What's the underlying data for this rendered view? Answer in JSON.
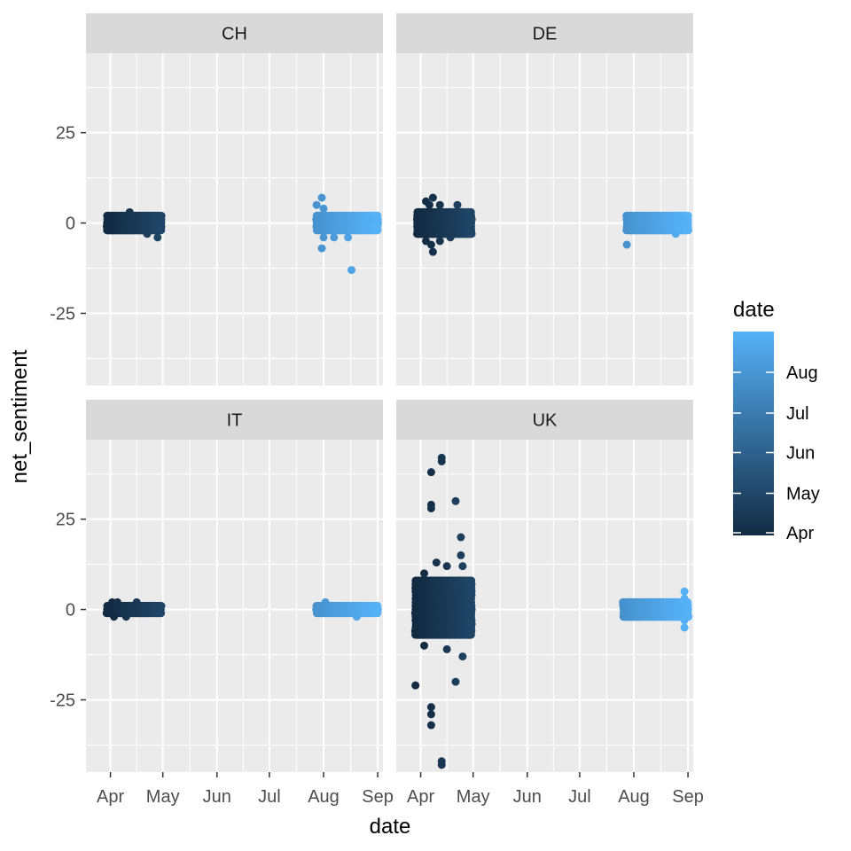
{
  "chart_data": {
    "type": "scatter",
    "xlabel": "date",
    "ylabel": "net_sentiment",
    "x_ticks": [
      "Apr",
      "May",
      "Jun",
      "Jul",
      "Aug",
      "Sep"
    ],
    "x_tick_dates": [
      "2020-04-01",
      "2020-05-01",
      "2020-06-01",
      "2020-07-01",
      "2020-08-01",
      "2020-09-01"
    ],
    "x_range": [
      "2020-03-18",
      "2020-09-04"
    ],
    "y_ticks": [
      -25,
      0,
      25
    ],
    "ylim": [
      -45,
      47
    ],
    "grid": true,
    "legend": {
      "title": "date",
      "placement": "right",
      "labels": [
        "Aug",
        "Jul",
        "Jun",
        "May",
        "Apr"
      ],
      "color_low": "#132B43",
      "color_high": "#56B1F7"
    },
    "panels": [
      {
        "name": "CH",
        "clusters": [
          {
            "x_start": "2020-03-30",
            "x_end": "2020-04-30",
            "y_min": -2,
            "y_max": 2
          },
          {
            "x_start": "2020-07-28",
            "x_end": "2020-09-01",
            "y_min": -2,
            "y_max": 2
          }
        ],
        "points": [
          {
            "x": "2020-04-12",
            "y": 3
          },
          {
            "x": "2020-04-28",
            "y": -4
          },
          {
            "x": "2020-04-22",
            "y": -3
          },
          {
            "x": "2020-07-28",
            "y": 5
          },
          {
            "x": "2020-07-31",
            "y": 7
          },
          {
            "x": "2020-08-01",
            "y": 4
          },
          {
            "x": "2020-08-01",
            "y": -4
          },
          {
            "x": "2020-07-31",
            "y": -7
          },
          {
            "x": "2020-08-07",
            "y": -4
          },
          {
            "x": "2020-08-15",
            "y": -4
          },
          {
            "x": "2020-08-17",
            "y": -13
          },
          {
            "x": "2020-08-29",
            "y": 1
          }
        ]
      },
      {
        "name": "DE",
        "clusters": [
          {
            "x_start": "2020-03-30",
            "x_end": "2020-04-30",
            "y_min": -3,
            "y_max": 3
          },
          {
            "x_start": "2020-07-28",
            "x_end": "2020-09-01",
            "y_min": -2,
            "y_max": 2
          }
        ],
        "points": [
          {
            "x": "2020-04-08",
            "y": 7
          },
          {
            "x": "2020-04-06",
            "y": 5
          },
          {
            "x": "2020-04-04",
            "y": 6
          },
          {
            "x": "2020-04-12",
            "y": 5
          },
          {
            "x": "2020-04-22",
            "y": 5
          },
          {
            "x": "2020-04-08",
            "y": -8
          },
          {
            "x": "2020-04-07",
            "y": -6
          },
          {
            "x": "2020-04-04",
            "y": -5
          },
          {
            "x": "2020-04-12",
            "y": -5
          },
          {
            "x": "2020-04-18",
            "y": -4
          },
          {
            "x": "2020-07-28",
            "y": -6
          },
          {
            "x": "2020-08-25",
            "y": -3
          },
          {
            "x": "2020-08-30",
            "y": 1
          }
        ]
      },
      {
        "name": "IT",
        "clusters": [
          {
            "x_start": "2020-03-30",
            "x_end": "2020-04-30",
            "y_min": -1,
            "y_max": 1
          },
          {
            "x_start": "2020-07-28",
            "x_end": "2020-09-01",
            "y_min": -1,
            "y_max": 1
          }
        ],
        "points": [
          {
            "x": "2020-04-02",
            "y": 2
          },
          {
            "x": "2020-04-05",
            "y": 2
          },
          {
            "x": "2020-04-16",
            "y": 2
          },
          {
            "x": "2020-04-03",
            "y": -2
          },
          {
            "x": "2020-04-10",
            "y": -2
          },
          {
            "x": "2020-08-02",
            "y": 2
          },
          {
            "x": "2020-08-20",
            "y": -2
          },
          {
            "x": "2020-08-30",
            "y": 1
          }
        ]
      },
      {
        "name": "UK",
        "clusters": [
          {
            "x_start": "2020-03-29",
            "x_end": "2020-04-30",
            "y_min": -7,
            "y_max": 8
          },
          {
            "x_start": "2020-07-26",
            "x_end": "2020-09-01",
            "y_min": -2,
            "y_max": 2
          }
        ],
        "points": [
          {
            "x": "2020-04-13",
            "y": 42
          },
          {
            "x": "2020-04-13",
            "y": 41
          },
          {
            "x": "2020-04-07",
            "y": 38
          },
          {
            "x": "2020-04-07",
            "y": 29
          },
          {
            "x": "2020-04-07",
            "y": 28
          },
          {
            "x": "2020-04-21",
            "y": 30
          },
          {
            "x": "2020-04-24",
            "y": 20
          },
          {
            "x": "2020-04-24",
            "y": 15
          },
          {
            "x": "2020-04-25",
            "y": 12
          },
          {
            "x": "2020-04-10",
            "y": 13
          },
          {
            "x": "2020-04-16",
            "y": 12
          },
          {
            "x": "2020-04-03",
            "y": 10
          },
          {
            "x": "2020-03-29",
            "y": -21
          },
          {
            "x": "2020-04-07",
            "y": -27
          },
          {
            "x": "2020-04-07",
            "y": -29
          },
          {
            "x": "2020-04-07",
            "y": -32
          },
          {
            "x": "2020-04-13",
            "y": -42
          },
          {
            "x": "2020-04-13",
            "y": -43
          },
          {
            "x": "2020-04-21",
            "y": -20
          },
          {
            "x": "2020-04-25",
            "y": -13
          },
          {
            "x": "2020-04-16",
            "y": -11
          },
          {
            "x": "2020-04-03",
            "y": -10
          },
          {
            "x": "2020-08-30",
            "y": 5
          },
          {
            "x": "2020-08-30",
            "y": -5
          },
          {
            "x": "2020-08-30",
            "y": 3
          },
          {
            "x": "2020-08-30",
            "y": -3
          }
        ]
      }
    ]
  }
}
